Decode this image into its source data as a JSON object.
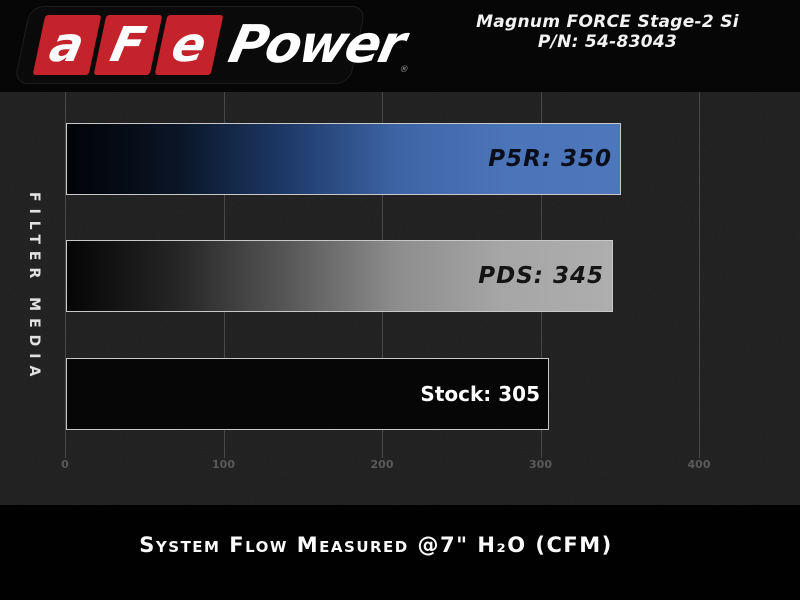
{
  "header": {
    "logo": {
      "letters": [
        "a",
        "F",
        "e"
      ],
      "word": "Power",
      "registered": "®"
    },
    "product": {
      "line1": "Magnum FORCE Stage-2 Si",
      "line2": "P/N: 54-83043"
    }
  },
  "chart_data": {
    "type": "bar",
    "orientation": "horizontal",
    "categories": [
      "P5R",
      "PDS",
      "Stock"
    ],
    "values": [
      350,
      345,
      305
    ],
    "series": [
      {
        "name": "P5R",
        "value": 350,
        "label": "P5R: 350",
        "gradient": [
          "#010306",
          "#0a1526",
          "#1e3a69",
          "#3e65a6",
          "#4c74b8",
          "#4e76ba"
        ],
        "label_color": "#0a0e1a"
      },
      {
        "name": "PDS",
        "value": 345,
        "label": "PDS: 345",
        "gradient": [
          "#050505",
          "#252525",
          "#565656",
          "#8c8c8c",
          "#a6a6a6",
          "#aeaeae"
        ],
        "label_color": "#141414"
      },
      {
        "name": "Stock",
        "value": 305,
        "label": "Stock: 305",
        "gradient": [
          "#060606",
          "#060606",
          "#060606",
          "#060606",
          "#060606",
          "#060606"
        ],
        "label_color": "#ffffff"
      }
    ],
    "category_axis_label": "FILTER MEDIA",
    "xticks": [
      0,
      100,
      200,
      300,
      400
    ],
    "xlim": [
      0,
      465
    ],
    "grid": true,
    "legend": "none",
    "caption": "System Flow Measured @7\" H₂O (CFM)"
  },
  "colors": {
    "brand_red": "#c4232b",
    "bar_blue": "#4e76ba",
    "bar_silver": "#aeaeae",
    "bar_black": "#060606",
    "chart_background": "#1e1e1e",
    "header_background": "#060606",
    "text_white": "#f2f2f2",
    "tick_gray": "#5a5a5a"
  }
}
